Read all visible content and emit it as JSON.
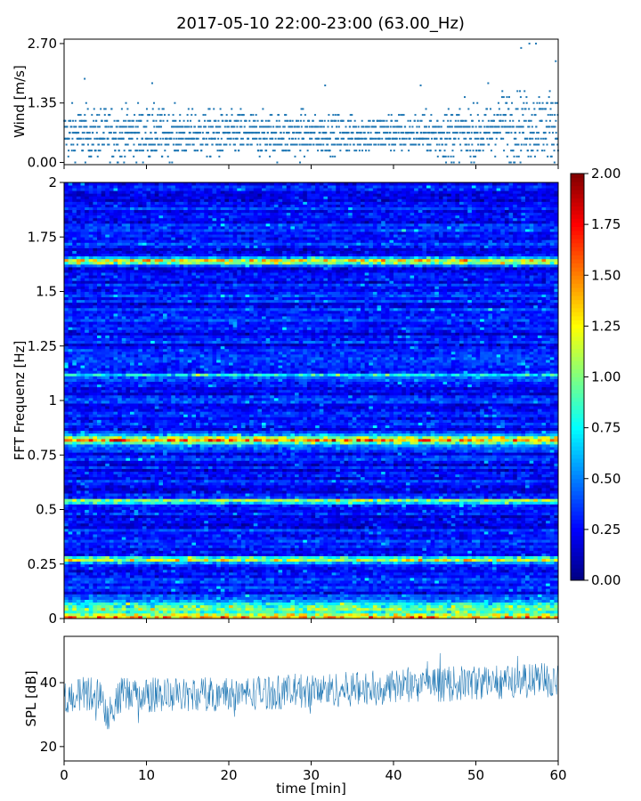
{
  "figure": {
    "title": "2017-05-10 22:00-23:00 (63.00_Hz)"
  },
  "chart_data": [
    {
      "type": "scatter",
      "name": "wind",
      "ylabel": "Wind [m/s]",
      "xlim": [
        0,
        60
      ],
      "ylim": [
        -0.05,
        2.8
      ],
      "yticks": [
        0.0,
        1.35,
        2.7
      ],
      "ytick_labels": [
        "0.00",
        "1.35",
        "2.70"
      ],
      "series_color": "#1f77b4",
      "samples_per_minute": 30,
      "level_step": 0.135,
      "baseline_mean": 0.65,
      "segments": [
        {
          "x": [
            0,
            5
          ],
          "spread": 0.28
        },
        {
          "x": [
            5,
            12
          ],
          "spread": 0.3
        },
        {
          "x": [
            12,
            30
          ],
          "spread": 0.25
        },
        {
          "x": [
            30,
            45
          ],
          "spread": 0.22
        },
        {
          "x": [
            45,
            53
          ],
          "spread": 0.3
        },
        {
          "x": [
            53,
            60
          ],
          "spread": 0.38
        }
      ],
      "peaks": [
        {
          "x": 2.5,
          "y": 1.9
        },
        {
          "x": 10.7,
          "y": 1.8
        },
        {
          "x": 31.7,
          "y": 1.75
        },
        {
          "x": 43.3,
          "y": 1.75
        },
        {
          "x": 51.5,
          "y": 1.8
        },
        {
          "x": 55.5,
          "y": 2.6
        },
        {
          "x": 56.5,
          "y": 2.7
        },
        {
          "x": 57.3,
          "y": 2.7
        },
        {
          "x": 59.7,
          "y": 2.3
        }
      ]
    },
    {
      "type": "heatmap",
      "name": "spectrogram",
      "ylabel": "FFT Frequenz [Hz]",
      "xlim": [
        0,
        60
      ],
      "ylim": [
        0,
        2
      ],
      "yticks": [
        0,
        0.25,
        0.5,
        0.75,
        1,
        1.25,
        1.5,
        1.75,
        2
      ],
      "ytick_labels": [
        "0",
        "0.25",
        "0.5",
        "0.75",
        "1",
        "1.25",
        "1.5",
        "1.75",
        "2"
      ],
      "colormap": "jet",
      "colorbar": {
        "range": [
          0,
          2
        ],
        "ticks": [
          0.0,
          0.25,
          0.5,
          0.75,
          1.0,
          1.25,
          1.5,
          1.75,
          2.0
        ],
        "tick_labels": [
          "0.00",
          "0.25",
          "0.50",
          "0.75",
          "1.00",
          "1.25",
          "1.50",
          "1.75",
          "2.00"
        ]
      },
      "frequency_bins": 160,
      "time_columns": 120,
      "background_level": 0.28,
      "bands": [
        {
          "freq": 0.005,
          "width": 0.02,
          "level": 1.3
        },
        {
          "freq": 0.05,
          "width": 0.03,
          "level": 0.75
        },
        {
          "freq": 0.27,
          "width": 0.015,
          "level": 0.95
        },
        {
          "freq": 0.54,
          "width": 0.012,
          "level": 0.8
        },
        {
          "freq": 0.82,
          "width": 0.02,
          "level": 1.15
        },
        {
          "freq": 1.12,
          "width": 0.01,
          "level": 0.6
        },
        {
          "freq": 1.64,
          "width": 0.015,
          "level": 1.05
        }
      ]
    },
    {
      "type": "line",
      "name": "spl",
      "xlabel": "time [min]",
      "ylabel": "SPL [dB]",
      "xlim": [
        0,
        60
      ],
      "ylim": [
        15.5,
        54.5
      ],
      "xticks": [
        0,
        10,
        20,
        30,
        40,
        50,
        60
      ],
      "xtick_labels": [
        "0",
        "10",
        "20",
        "30",
        "40",
        "50",
        "60"
      ],
      "yticks": [
        20,
        40
      ],
      "ytick_labels": [
        "20",
        "40"
      ],
      "series_color": "#1f77b4",
      "samples": 900,
      "trend": [
        {
          "x": 0,
          "y": 36
        },
        {
          "x": 4.5,
          "y": 37
        },
        {
          "x": 5.2,
          "y": 30
        },
        {
          "x": 7,
          "y": 36
        },
        {
          "x": 20,
          "y": 36.5
        },
        {
          "x": 35,
          "y": 38
        },
        {
          "x": 50,
          "y": 40
        },
        {
          "x": 60,
          "y": 41
        }
      ],
      "spread": 5.5
    }
  ]
}
